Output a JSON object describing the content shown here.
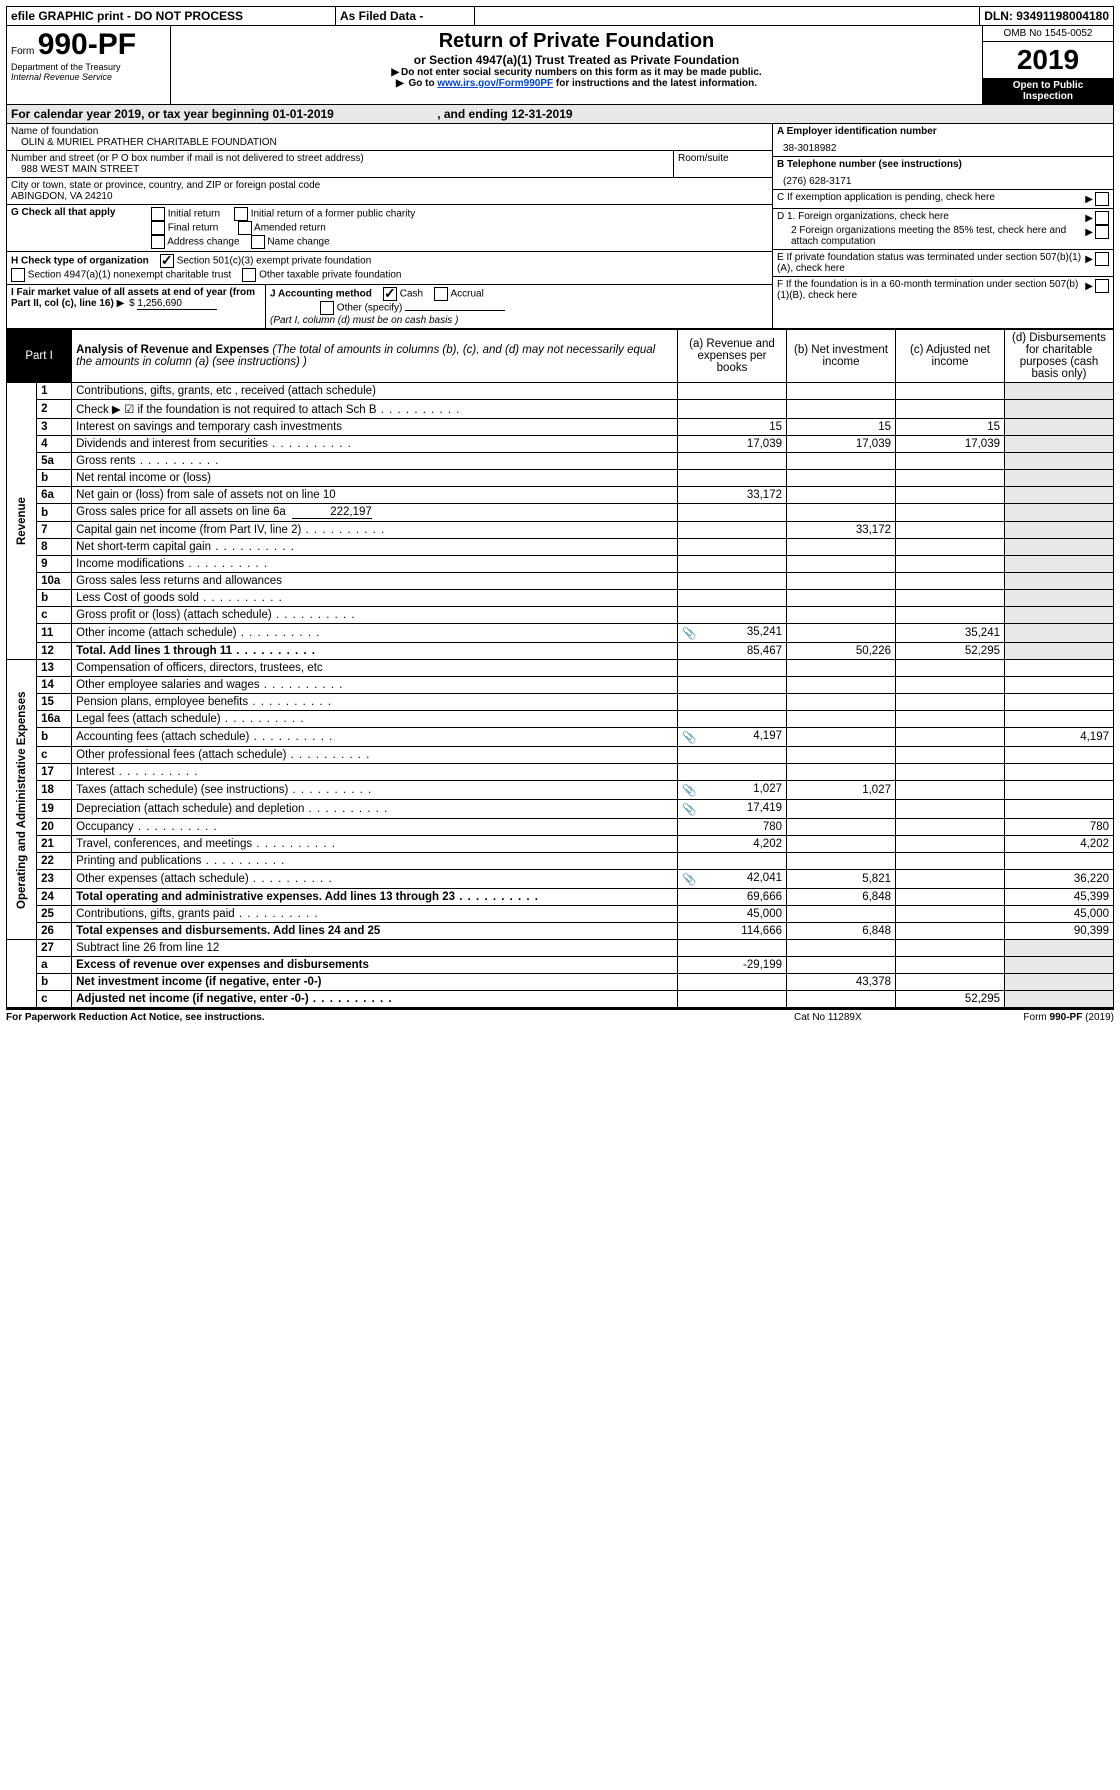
{
  "topbar": {
    "efile_note": "efile GRAPHIC print - DO NOT PROCESS",
    "as_filed": "As Filed Data -",
    "dln_label": "DLN:",
    "dln": "93491198004180"
  },
  "header": {
    "form_prefix": "Form",
    "form_number": "990-PF",
    "dept": "Department of the Treasury",
    "irs": "Internal Revenue Service",
    "title": "Return of Private Foundation",
    "subtitle": "or Section 4947(a)(1) Trust Treated as Private Foundation",
    "note1": "Do not enter social security numbers on this form as it may be made public.",
    "note2_pre": "Go to ",
    "note2_link": "www.irs.gov/Form990PF",
    "note2_post": " for instructions and the latest information.",
    "omb": "OMB No 1545-0052",
    "year": "2019",
    "open": "Open to Public Inspection"
  },
  "calendar": {
    "text_pre": "For calendar year 2019, or tax year beginning ",
    "begin": "01-01-2019",
    "mid": " , and ending ",
    "end": "12-31-2019"
  },
  "foundation": {
    "name_label": "Name of foundation",
    "name": "OLIN & MURIEL PRATHER CHARITABLE FOUNDATION",
    "address_label": "Number and street (or P O  box number if mail is not delivered to street address)",
    "room_label": "Room/suite",
    "address": "988 WEST MAIN STREET",
    "city_label": "City or town, state or province, country, and ZIP or foreign postal code",
    "city": "ABINGDON, VA  24210"
  },
  "sideA": {
    "label": "A Employer identification number",
    "value": "38-3018982"
  },
  "sideB": {
    "label": "B Telephone number (see instructions)",
    "value": "(276) 628-3171"
  },
  "sideC": {
    "label": "C If exemption application is pending, check here"
  },
  "sideD": {
    "d1": "D 1. Foreign organizations, check here",
    "d2": "2 Foreign organizations meeting the 85% test, check here and attach computation"
  },
  "sideE": {
    "label": "E  If private foundation status was terminated under section 507(b)(1)(A), check here"
  },
  "sideF": {
    "label": "F  If the foundation is in a 60-month termination under section 507(b)(1)(B), check here"
  },
  "boxG": {
    "label": "G Check all that apply",
    "opts": [
      "Initial return",
      "Initial return of a former public charity",
      "Final return",
      "Amended return",
      "Address change",
      "Name change"
    ]
  },
  "boxH": {
    "label": "H Check type of organization",
    "opt1": "Section 501(c)(3) exempt private foundation",
    "opt2": "Section 4947(a)(1) nonexempt charitable trust",
    "opt3": "Other taxable private foundation"
  },
  "boxI": {
    "label": "I Fair market value of all assets at end of year (from Part II, col  (c), line 16) ",
    "amount_label": "$",
    "amount": "1,256,690"
  },
  "boxJ": {
    "label": "J Accounting method",
    "opt1": "Cash",
    "opt2": "Accrual",
    "opt3": "Other (specify)",
    "note": "(Part I, column (d) must be on cash basis )"
  },
  "part1": {
    "title": "Part I",
    "heading": "Analysis of Revenue and Expenses (The total of amounts in columns (b), (c), and (d) may not necessarily equal the amounts in column (a) (see instructions) )",
    "col_a": "(a) Revenue and expenses per books",
    "col_b": "(b) Net investment income",
    "col_c": "(c) Adjusted net income",
    "col_d": "(d) Disbursements for charitable purposes (cash basis only)"
  },
  "section_revenue": "Revenue",
  "section_expenses": "Operating and Administrative Expenses",
  "rows": [
    {
      "n": "1",
      "d": "Contributions, gifts, grants, etc , received (attach schedule)",
      "a": "",
      "b": "",
      "c": "",
      "dcol": ""
    },
    {
      "n": "2",
      "d": "Check ▶ ☑ if the foundation is not required to attach Sch  B",
      "dots": true,
      "a": "",
      "b": "",
      "c": "",
      "dcol": ""
    },
    {
      "n": "3",
      "d": "Interest on savings and temporary cash investments",
      "a": "15",
      "b": "15",
      "c": "15",
      "dcol": ""
    },
    {
      "n": "4",
      "d": "Dividends and interest from securities",
      "dots": true,
      "a": "17,039",
      "b": "17,039",
      "c": "17,039",
      "dcol": ""
    },
    {
      "n": "5a",
      "d": "Gross rents",
      "dots": true,
      "a": "",
      "b": "",
      "c": "",
      "dcol": ""
    },
    {
      "n": "b",
      "d": "Net rental income or (loss)",
      "a": "",
      "b": "",
      "c": "",
      "dcol": ""
    },
    {
      "n": "6a",
      "d": "Net gain or (loss) from sale of assets not on line 10",
      "a": "33,172",
      "b": "",
      "c": "",
      "dcol": ""
    },
    {
      "n": "b",
      "d": "Gross sales price for all assets on line 6a",
      "suffix": "222,197",
      "a": "",
      "b": "",
      "c": "",
      "dcol": ""
    },
    {
      "n": "7",
      "d": "Capital gain net income (from Part IV, line 2)",
      "dots": true,
      "a": "",
      "b": "33,172",
      "c": "",
      "dcol": ""
    },
    {
      "n": "8",
      "d": "Net short-term capital gain",
      "dots": true,
      "a": "",
      "b": "",
      "c": "",
      "dcol": ""
    },
    {
      "n": "9",
      "d": "Income modifications",
      "dots": true,
      "a": "",
      "b": "",
      "c": "",
      "dcol": ""
    },
    {
      "n": "10a",
      "d": "Gross sales less returns and allowances",
      "a": "",
      "b": "",
      "c": "",
      "dcol": ""
    },
    {
      "n": "b",
      "d": "Less  Cost of goods sold",
      "dots": true,
      "a": "",
      "b": "",
      "c": "",
      "dcol": ""
    },
    {
      "n": "c",
      "d": "Gross profit or (loss) (attach schedule)",
      "dots": true,
      "a": "",
      "b": "",
      "c": "",
      "dcol": ""
    },
    {
      "n": "11",
      "d": "Other income (attach schedule)",
      "dots": true,
      "icon": true,
      "a": "35,241",
      "b": "",
      "c": "35,241",
      "dcol": ""
    },
    {
      "n": "12",
      "d": "Total. Add lines 1 through 11",
      "bold": true,
      "dots": true,
      "a": "85,467",
      "b": "50,226",
      "c": "52,295",
      "dcol": ""
    }
  ],
  "rows_exp": [
    {
      "n": "13",
      "d": "Compensation of officers, directors, trustees, etc",
      "a": "",
      "b": "",
      "c": "",
      "dcol": ""
    },
    {
      "n": "14",
      "d": "Other employee salaries and wages",
      "dots": true,
      "a": "",
      "b": "",
      "c": "",
      "dcol": ""
    },
    {
      "n": "15",
      "d": "Pension plans, employee benefits",
      "dots": true,
      "a": "",
      "b": "",
      "c": "",
      "dcol": ""
    },
    {
      "n": "16a",
      "d": "Legal fees (attach schedule)",
      "dots": true,
      "a": "",
      "b": "",
      "c": "",
      "dcol": ""
    },
    {
      "n": "b",
      "d": "Accounting fees (attach schedule)",
      "dots": true,
      "icon": true,
      "a": "4,197",
      "b": "",
      "c": "",
      "dcol": "4,197"
    },
    {
      "n": "c",
      "d": "Other professional fees (attach schedule)",
      "dots": true,
      "a": "",
      "b": "",
      "c": "",
      "dcol": ""
    },
    {
      "n": "17",
      "d": "Interest",
      "dots": true,
      "a": "",
      "b": "",
      "c": "",
      "dcol": ""
    },
    {
      "n": "18",
      "d": "Taxes (attach schedule) (see instructions)",
      "dots": true,
      "icon": true,
      "a": "1,027",
      "b": "1,027",
      "c": "",
      "dcol": ""
    },
    {
      "n": "19",
      "d": "Depreciation (attach schedule) and depletion",
      "dots": true,
      "icon": true,
      "a": "17,419",
      "b": "",
      "c": "",
      "dcol": ""
    },
    {
      "n": "20",
      "d": "Occupancy",
      "dots": true,
      "a": "780",
      "b": "",
      "c": "",
      "dcol": "780"
    },
    {
      "n": "21",
      "d": "Travel, conferences, and meetings",
      "dots": true,
      "a": "4,202",
      "b": "",
      "c": "",
      "dcol": "4,202"
    },
    {
      "n": "22",
      "d": "Printing and publications",
      "dots": true,
      "a": "",
      "b": "",
      "c": "",
      "dcol": ""
    },
    {
      "n": "23",
      "d": "Other expenses (attach schedule)",
      "dots": true,
      "icon": true,
      "a": "42,041",
      "b": "5,821",
      "c": "",
      "dcol": "36,220"
    },
    {
      "n": "24",
      "d": "Total operating and administrative expenses. Add lines 13 through 23",
      "bold": true,
      "dots": true,
      "a": "69,666",
      "b": "6,848",
      "c": "",
      "dcol": "45,399"
    },
    {
      "n": "25",
      "d": "Contributions, gifts, grants paid",
      "dots": true,
      "a": "45,000",
      "b": "",
      "c": "",
      "dcol": "45,000"
    },
    {
      "n": "26",
      "d": "Total expenses and disbursements. Add lines 24 and 25",
      "bold": true,
      "a": "114,666",
      "b": "6,848",
      "c": "",
      "dcol": "90,399"
    }
  ],
  "rows_bottom": [
    {
      "n": "27",
      "d": "Subtract line 26 from line 12",
      "a": "",
      "b": "",
      "c": "",
      "dcol": ""
    },
    {
      "n": "a",
      "d": "Excess of revenue over expenses and disbursements",
      "bold": true,
      "a": "-29,199",
      "b": "",
      "c": "",
      "dcol": ""
    },
    {
      "n": "b",
      "d": "Net investment income (if negative, enter -0-)",
      "bold": true,
      "a": "",
      "b": "43,378",
      "c": "",
      "dcol": ""
    },
    {
      "n": "c",
      "d": "Adjusted net income (if negative, enter -0-)",
      "bold": true,
      "dots": true,
      "a": "",
      "b": "",
      "c": "52,295",
      "dcol": ""
    }
  ],
  "footer": {
    "left": "For Paperwork Reduction Act Notice, see instructions.",
    "mid": "Cat  No  11289X",
    "right": "Form 990-PF (2019)"
  }
}
